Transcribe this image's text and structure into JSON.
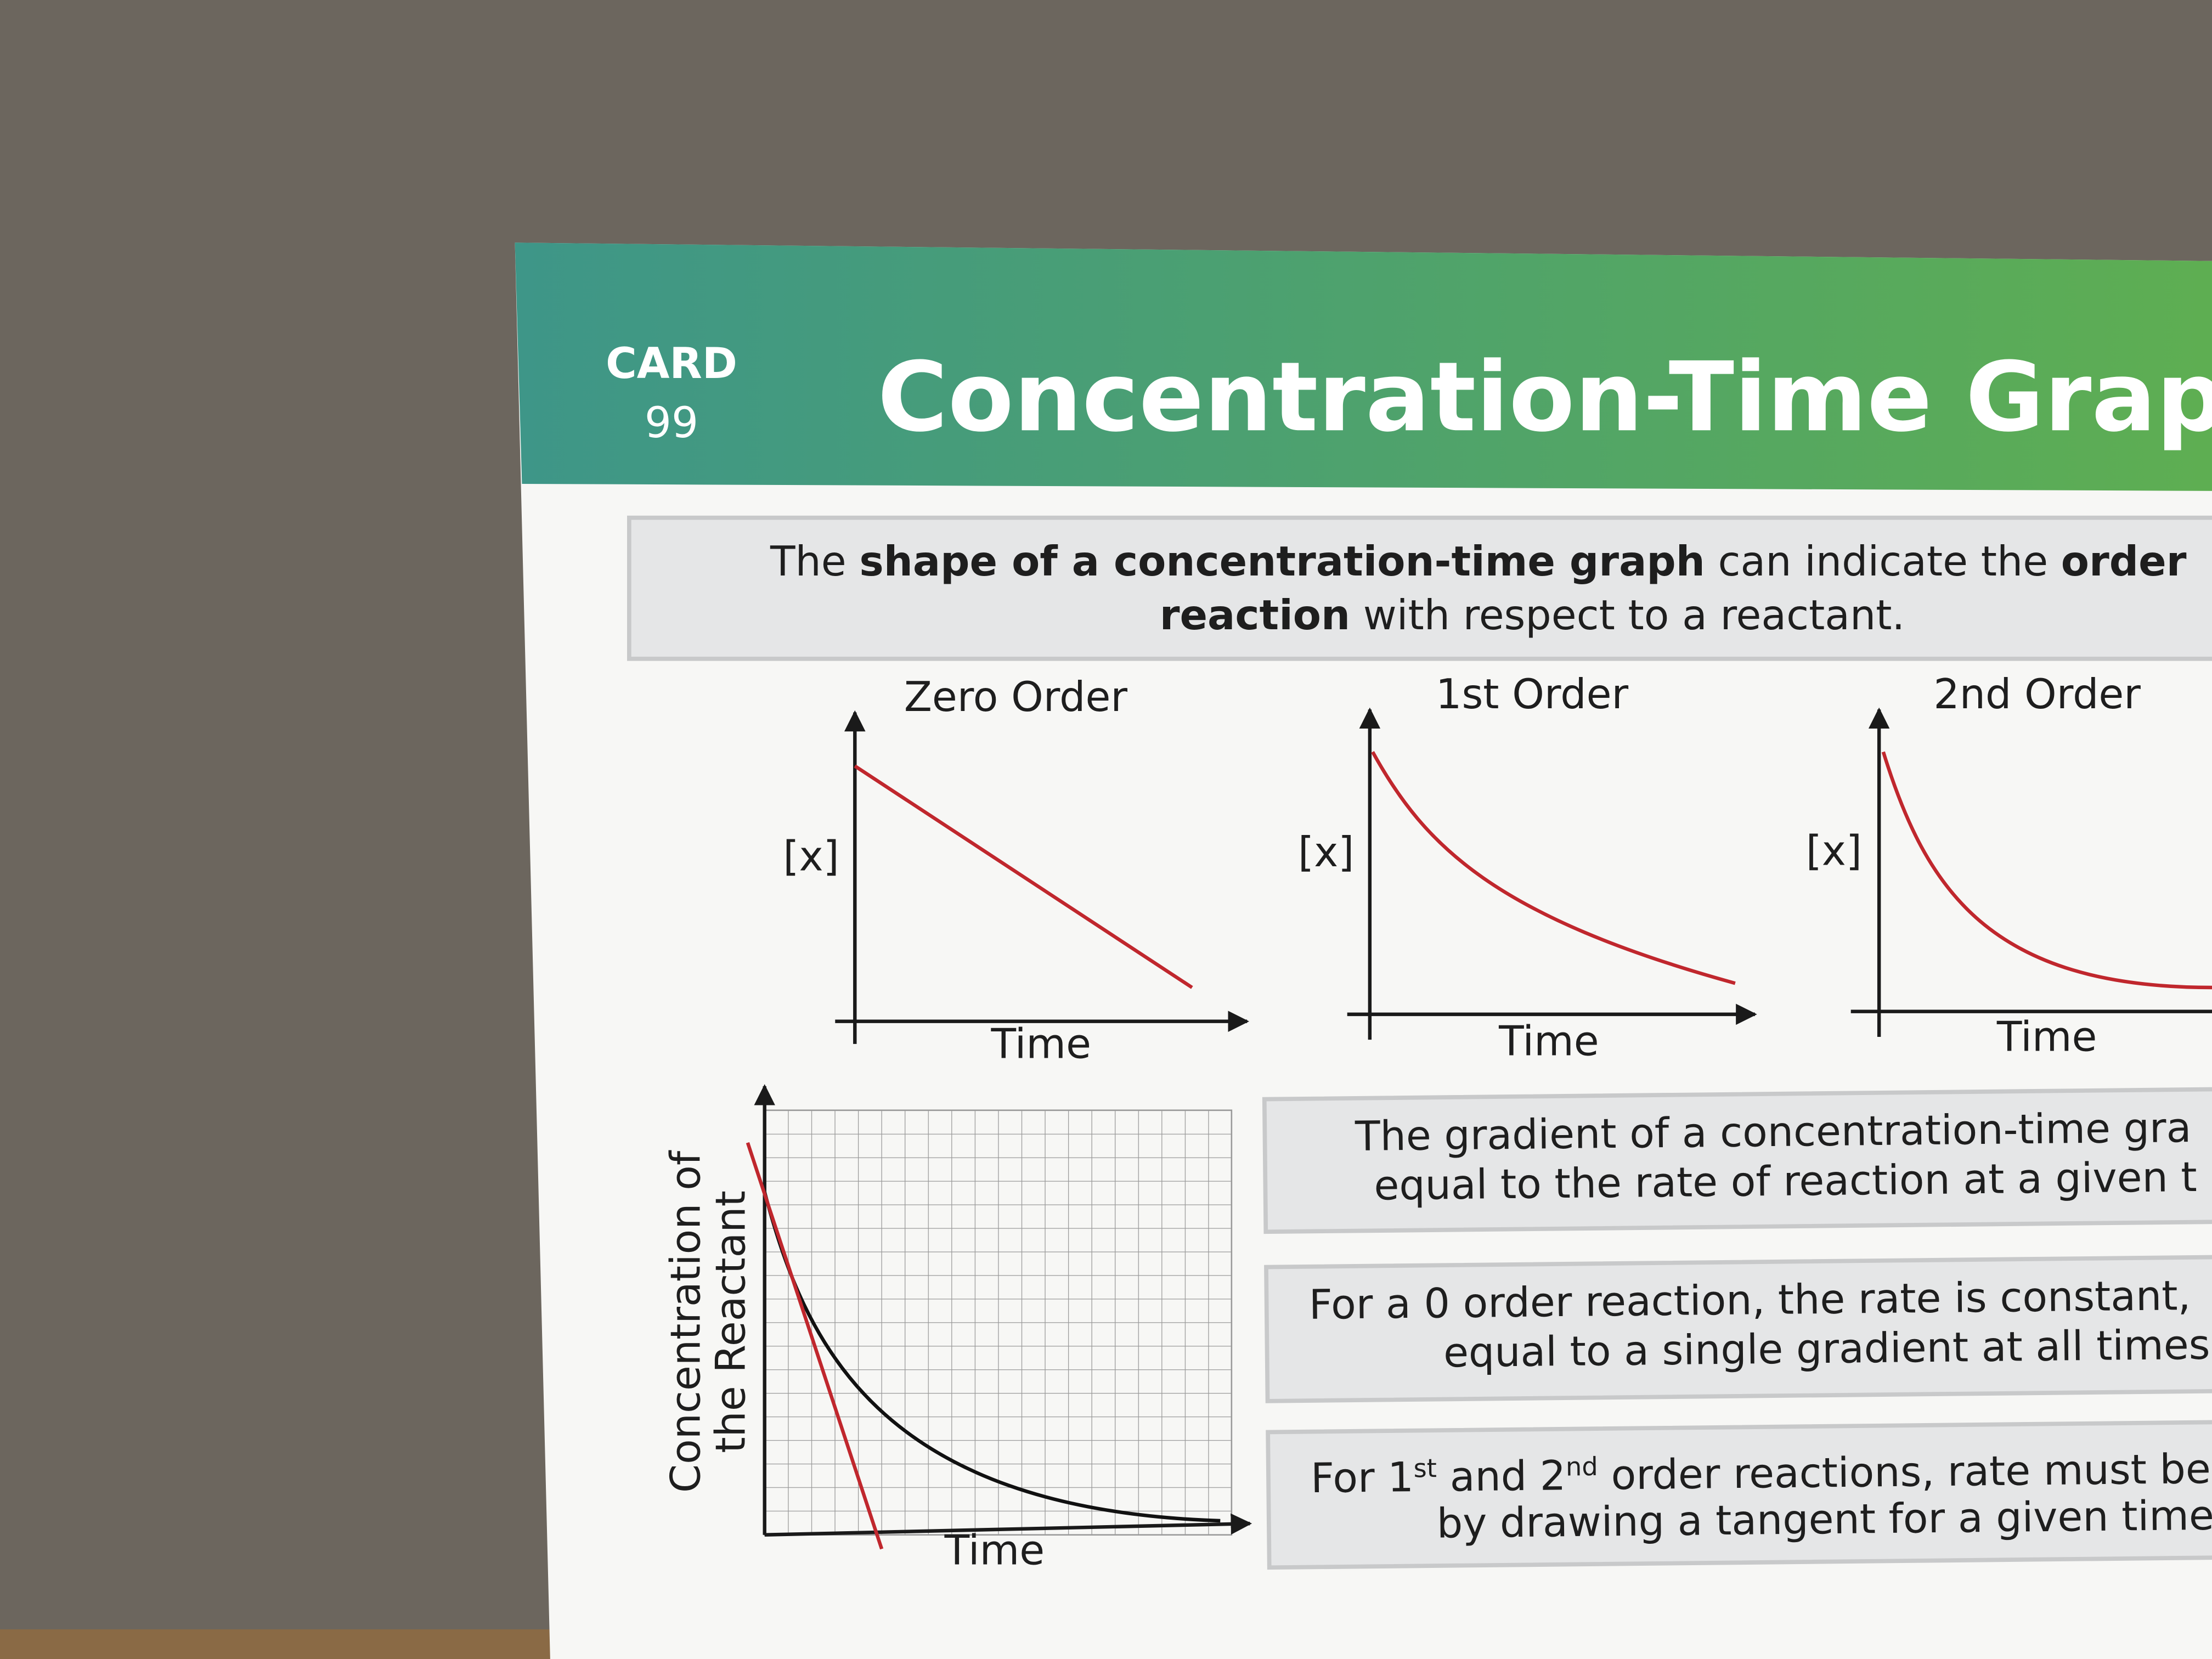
{
  "header": {
    "card_label": "CARD",
    "card_number": "99",
    "title": "Concentration-Time Graphs"
  },
  "intro": {
    "line1": [
      "The ",
      "shape of a concentration-time graph",
      " can indicate the ",
      "order"
    ],
    "line2": [
      "reaction",
      " with respect to a reactant."
    ]
  },
  "graphs": [
    {
      "title": "Zero Order",
      "y_label": "[x]",
      "x_label": "Time"
    },
    {
      "title": "1st Order",
      "y_label": "[x]",
      "x_label": "Time"
    },
    {
      "title": "2nd Order",
      "y_label": "[x]",
      "x_label": "Time"
    }
  ],
  "tangent_graph": {
    "y_label": [
      "Concentration of",
      "the Reactant"
    ],
    "x_label": "Time"
  },
  "notes": [
    {
      "lines": [
        "The gradient of a concentration-time gra",
        "equal to the rate of reaction at a given t"
      ]
    },
    {
      "lines": [
        "For a 0 order reaction, the rate is constant,",
        "equal to a single gradient at all times."
      ]
    },
    {
      "line1": [
        "For 1",
        "st",
        " and 2",
        "nd",
        " order reactions, rate must be"
      ],
      "line2": "by drawing a tangent for a given time."
    }
  ]
}
